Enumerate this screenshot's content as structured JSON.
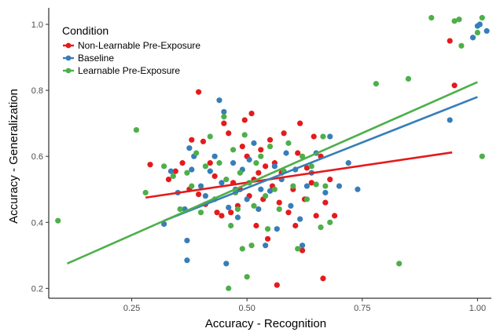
{
  "chart_data": {
    "type": "scatter",
    "title": "",
    "xlabel": "Accuracy - Recognition",
    "ylabel": "Accuracy - Generalization",
    "xlim": [
      0.07,
      1.03
    ],
    "ylim": [
      0.17,
      1.05
    ],
    "x_ticks": [
      0.25,
      0.5,
      0.75,
      1.0
    ],
    "x_tick_labels": [
      "0.25",
      "0.50",
      "0.75",
      "1.00"
    ],
    "y_ticks": [
      0.2,
      0.4,
      0.6,
      0.8,
      1.0
    ],
    "y_tick_labels": [
      "0.2",
      "0.4",
      "0.6",
      "0.8",
      "1.0"
    ],
    "grid": false,
    "legend": {
      "title": "Condition",
      "position": "top-left",
      "entries": [
        "Non-Learnable Pre-Exposure",
        "Baseline",
        "Learnable Pre-Exposure"
      ]
    },
    "series": [
      {
        "name": "Non-Learnable Pre-Exposure",
        "color": "#e41a1c",
        "points": [
          [
            0.29,
            0.575
          ],
          [
            0.33,
            0.53
          ],
          [
            0.345,
            0.555
          ],
          [
            0.36,
            0.58
          ],
          [
            0.375,
            0.5
          ],
          [
            0.38,
            0.65
          ],
          [
            0.395,
            0.795
          ],
          [
            0.395,
            0.485
          ],
          [
            0.405,
            0.645
          ],
          [
            0.41,
            0.455
          ],
          [
            0.42,
            0.58
          ],
          [
            0.43,
            0.54
          ],
          [
            0.435,
            0.43
          ],
          [
            0.445,
            0.42
          ],
          [
            0.45,
            0.7
          ],
          [
            0.46,
            0.67
          ],
          [
            0.465,
            0.43
          ],
          [
            0.47,
            0.52
          ],
          [
            0.48,
            0.45
          ],
          [
            0.485,
            0.5
          ],
          [
            0.49,
            0.63
          ],
          [
            0.495,
            0.71
          ],
          [
            0.5,
            0.6
          ],
          [
            0.505,
            0.48
          ],
          [
            0.51,
            0.73
          ],
          [
            0.515,
            0.53
          ],
          [
            0.52,
            0.39
          ],
          [
            0.525,
            0.55
          ],
          [
            0.53,
            0.62
          ],
          [
            0.535,
            0.47
          ],
          [
            0.54,
            0.57
          ],
          [
            0.545,
            0.35
          ],
          [
            0.55,
            0.65
          ],
          [
            0.555,
            0.51
          ],
          [
            0.56,
            0.58
          ],
          [
            0.565,
            0.21
          ],
          [
            0.57,
            0.46
          ],
          [
            0.575,
            0.55
          ],
          [
            0.58,
            0.67
          ],
          [
            0.59,
            0.43
          ],
          [
            0.6,
            0.5
          ],
          [
            0.605,
            0.39
          ],
          [
            0.61,
            0.61
          ],
          [
            0.615,
            0.7
          ],
          [
            0.62,
            0.315
          ],
          [
            0.625,
            0.47
          ],
          [
            0.63,
            0.565
          ],
          [
            0.64,
            0.52
          ],
          [
            0.645,
            0.66
          ],
          [
            0.65,
            0.42
          ],
          [
            0.66,
            0.6
          ],
          [
            0.665,
            0.23
          ],
          [
            0.67,
            0.46
          ],
          [
            0.68,
            0.53
          ],
          [
            0.69,
            0.42
          ],
          [
            0.94,
            0.95
          ],
          [
            0.95,
            0.815
          ]
        ]
      },
      {
        "name": "Baseline",
        "color": "#377eb8",
        "points": [
          [
            0.32,
            0.395
          ],
          [
            0.335,
            0.555
          ],
          [
            0.35,
            0.49
          ],
          [
            0.365,
            0.44
          ],
          [
            0.37,
            0.345
          ],
          [
            0.37,
            0.285
          ],
          [
            0.375,
            0.625
          ],
          [
            0.38,
            0.56
          ],
          [
            0.385,
            0.6
          ],
          [
            0.4,
            0.51
          ],
          [
            0.41,
            0.48
          ],
          [
            0.42,
            0.555
          ],
          [
            0.43,
            0.6
          ],
          [
            0.44,
            0.77
          ],
          [
            0.445,
            0.52
          ],
          [
            0.45,
            0.735
          ],
          [
            0.455,
            0.275
          ],
          [
            0.46,
            0.445
          ],
          [
            0.47,
            0.58
          ],
          [
            0.475,
            0.5
          ],
          [
            0.48,
            0.415
          ],
          [
            0.49,
            0.56
          ],
          [
            0.5,
            0.47
          ],
          [
            0.505,
            0.59
          ],
          [
            0.515,
            0.64
          ],
          [
            0.525,
            0.44
          ],
          [
            0.53,
            0.5
          ],
          [
            0.54,
            0.33
          ],
          [
            0.55,
            0.495
          ],
          [
            0.56,
            0.57
          ],
          [
            0.565,
            0.38
          ],
          [
            0.575,
            0.53
          ],
          [
            0.585,
            0.61
          ],
          [
            0.595,
            0.45
          ],
          [
            0.605,
            0.56
          ],
          [
            0.615,
            0.41
          ],
          [
            0.62,
            0.33
          ],
          [
            0.63,
            0.51
          ],
          [
            0.64,
            0.55
          ],
          [
            0.65,
            0.61
          ],
          [
            0.67,
            0.49
          ],
          [
            0.68,
            0.66
          ],
          [
            0.7,
            0.51
          ],
          [
            0.72,
            0.58
          ],
          [
            0.74,
            0.5
          ],
          [
            0.94,
            0.71
          ],
          [
            0.99,
            0.96
          ],
          [
            1.0,
            0.995
          ],
          [
            1.005,
            1.0
          ],
          [
            1.02,
            0.98
          ]
        ]
      },
      {
        "name": "Learnable Pre-Exposure",
        "color": "#4daf4a",
        "points": [
          [
            0.09,
            0.405
          ],
          [
            0.26,
            0.68
          ],
          [
            0.28,
            0.49
          ],
          [
            0.32,
            0.57
          ],
          [
            0.34,
            0.54
          ],
          [
            0.355,
            0.44
          ],
          [
            0.37,
            0.55
          ],
          [
            0.38,
            0.51
          ],
          [
            0.39,
            0.61
          ],
          [
            0.4,
            0.43
          ],
          [
            0.41,
            0.57
          ],
          [
            0.42,
            0.66
          ],
          [
            0.43,
            0.47
          ],
          [
            0.44,
            0.58
          ],
          [
            0.45,
            0.72
          ],
          [
            0.455,
            0.53
          ],
          [
            0.46,
            0.2
          ],
          [
            0.465,
            0.39
          ],
          [
            0.47,
            0.62
          ],
          [
            0.475,
            0.49
          ],
          [
            0.48,
            0.44
          ],
          [
            0.485,
            0.55
          ],
          [
            0.49,
            0.32
          ],
          [
            0.495,
            0.665
          ],
          [
            0.5,
            0.235
          ],
          [
            0.505,
            0.52
          ],
          [
            0.51,
            0.33
          ],
          [
            0.515,
            0.45
          ],
          [
            0.52,
            0.58
          ],
          [
            0.53,
            0.6
          ],
          [
            0.54,
            0.48
          ],
          [
            0.545,
            0.38
          ],
          [
            0.55,
            0.63
          ],
          [
            0.56,
            0.5
          ],
          [
            0.57,
            0.44
          ],
          [
            0.58,
            0.555
          ],
          [
            0.59,
            0.64
          ],
          [
            0.6,
            0.51
          ],
          [
            0.61,
            0.32
          ],
          [
            0.62,
            0.6
          ],
          [
            0.63,
            0.47
          ],
          [
            0.64,
            0.57
          ],
          [
            0.65,
            0.515
          ],
          [
            0.66,
            0.385
          ],
          [
            0.665,
            0.66
          ],
          [
            0.67,
            0.51
          ],
          [
            0.68,
            0.4
          ],
          [
            0.78,
            0.82
          ],
          [
            0.83,
            0.275
          ],
          [
            0.85,
            0.835
          ],
          [
            0.9,
            1.02
          ],
          [
            0.95,
            1.01
          ],
          [
            0.96,
            1.015
          ],
          [
            0.965,
            0.935
          ],
          [
            1.0,
            0.975
          ],
          [
            1.01,
            1.02
          ],
          [
            1.01,
            0.6
          ]
        ]
      }
    ],
    "fit_lines": [
      {
        "series": "Non-Learnable Pre-Exposure",
        "color": "#e41a1c",
        "x": [
          0.28,
          0.945
        ],
        "y": [
          0.475,
          0.612
        ]
      },
      {
        "series": "Baseline",
        "color": "#377eb8",
        "x": [
          0.32,
          1.0
        ],
        "y": [
          0.405,
          0.78
        ]
      },
      {
        "series": "Learnable Pre-Exposure",
        "color": "#4daf4a",
        "x": [
          0.11,
          1.0
        ],
        "y": [
          0.275,
          0.825
        ]
      }
    ]
  }
}
